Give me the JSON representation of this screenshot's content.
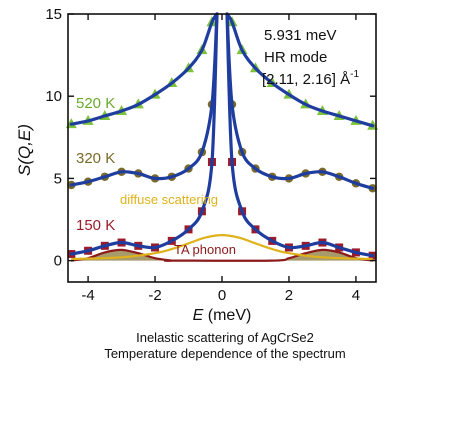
{
  "chart_data": {
    "type": "line",
    "xlabel": "E (meV)",
    "xlabel_main": "E",
    "xlabel_unit": " (meV)",
    "ylabel": "S(Q,E)",
    "xlim": [
      -4.6,
      4.6
    ],
    "ylim": [
      -1.3,
      15
    ],
    "xticks": [
      -4,
      -2,
      0,
      2,
      4
    ],
    "yticks": [
      0,
      5,
      10,
      15
    ],
    "grid": false,
    "annotations": {
      "energy": "5.931 meV",
      "mode": "HR mode",
      "q_range": "[2.11, 2.16] Å",
      "q_unit_exp": "-1"
    },
    "colors": {
      "fit": "#1f3d9e",
      "data_520": "#7cc23a",
      "data_320": "#7a6a2a",
      "data_150": "#9b1b2a",
      "diffuse": "#e0b21a",
      "ta_phonon": "#8b1a1a",
      "ta_fill": "#8a7a3a"
    },
    "series": [
      {
        "name": "520 K",
        "label_color": "#6aa82e",
        "x": [
          -4.5,
          -4,
          -3.5,
          -3,
          -2.5,
          -2,
          -1.5,
          -1,
          -0.6,
          -0.3,
          0.3,
          0.6,
          1,
          1.5,
          2,
          2.5,
          3,
          3.5,
          4,
          4.5
        ],
        "y": [
          8.3,
          8.5,
          8.8,
          9.1,
          9.5,
          10.1,
          10.8,
          11.7,
          12.8,
          14.5,
          14.5,
          12.8,
          11.7,
          10.8,
          10.1,
          9.5,
          9.1,
          8.8,
          8.5,
          8.2
        ]
      },
      {
        "name": "320 K",
        "label_color": "#7a6a2a",
        "x": [
          -4.5,
          -4,
          -3.5,
          -3,
          -2.5,
          -2,
          -1.5,
          -1,
          -0.6,
          -0.3,
          0.3,
          0.6,
          1,
          1.5,
          2,
          2.5,
          3,
          3.5,
          4,
          4.5
        ],
        "y": [
          4.6,
          4.8,
          5.1,
          5.4,
          5.3,
          5.0,
          5.1,
          5.6,
          6.6,
          9.5,
          9.5,
          6.6,
          5.6,
          5.1,
          5.0,
          5.3,
          5.4,
          5.1,
          4.7,
          4.4
        ]
      },
      {
        "name": "150 K",
        "label_color": "#9b1b2a",
        "x": [
          -4.5,
          -4,
          -3.5,
          -3,
          -2.5,
          -2,
          -1.5,
          -1,
          -0.6,
          -0.3,
          0.3,
          0.6,
          1,
          1.5,
          2,
          2.5,
          3,
          3.5,
          4,
          4.5
        ],
        "y": [
          0.4,
          0.6,
          0.9,
          1.1,
          0.9,
          0.8,
          1.2,
          1.9,
          3.0,
          6.0,
          6.0,
          3.0,
          1.9,
          1.2,
          0.8,
          0.9,
          1.1,
          0.8,
          0.5,
          0.3
        ]
      },
      {
        "name": "diffuse scattering",
        "label_color": "#e0b21a",
        "x": [
          -4.5,
          -3,
          -2,
          -1.5,
          -1,
          -0.5,
          0,
          0.5,
          1,
          1.5,
          2,
          3,
          4.5
        ],
        "y": [
          0.1,
          0.2,
          0.45,
          0.7,
          1.05,
          1.4,
          1.55,
          1.4,
          1.05,
          0.7,
          0.45,
          0.2,
          0.1
        ]
      },
      {
        "name": "TA phonon",
        "label_color": "#8b1a1a",
        "x": [
          -4.5,
          -4,
          -3.5,
          -3,
          -2.5,
          -2,
          -1.5,
          -1.5,
          1.5,
          2,
          2.5,
          3,
          3.5,
          4,
          4.5
        ],
        "y": [
          0.0,
          0.15,
          0.5,
          0.65,
          0.45,
          0.15,
          0.0,
          0.0,
          0.0,
          0.15,
          0.45,
          0.65,
          0.5,
          0.15,
          0.0
        ]
      }
    ]
  },
  "caption": {
    "line1": "Inelastic scattering of AgCrSe2",
    "line2": "Temperature dependence of the spectrum"
  }
}
